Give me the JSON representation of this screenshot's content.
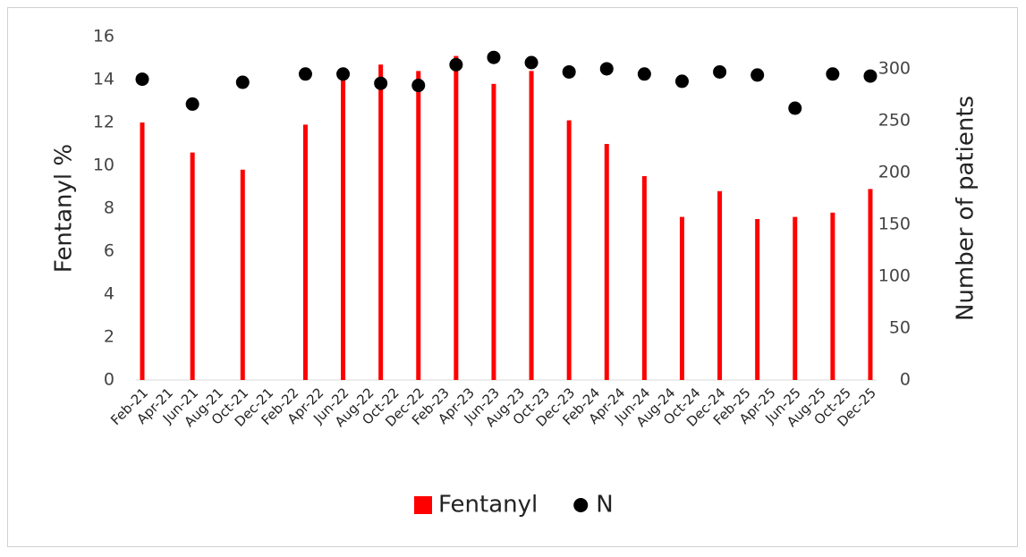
{
  "chart_data": {
    "type": "bar",
    "categories": [
      "Feb-21",
      null,
      "Apr-21",
      null,
      "Jun-21",
      null,
      "Aug-21",
      null,
      "Oct-21",
      null,
      "Dec-21",
      null,
      "Feb-22",
      null,
      "Apr-22",
      null,
      "Jun-22",
      null,
      "Aug-22",
      null,
      "Oct-22",
      null,
      "Dec-22",
      null,
      "Feb-23",
      null,
      "Apr-23",
      null,
      "Jun-23",
      null,
      "Aug-23",
      null,
      "Oct-23",
      null,
      "Dec-23",
      null,
      "Feb-24",
      null,
      "Apr-24",
      null,
      "Jun-24",
      null,
      "Aug-24",
      null,
      "Oct-24",
      null,
      "Dec-24",
      null,
      "Feb-25",
      null,
      "Apr-25",
      null,
      "Jun-25",
      null,
      "Aug-25",
      null,
      "Oct-25",
      null,
      "Dec-25"
    ],
    "series": [
      {
        "name": "Fentanyl",
        "color": "#ff0000",
        "type": "bar",
        "values": [
          12.0,
          null,
          null,
          null,
          10.6,
          null,
          null,
          null,
          9.8,
          null,
          null,
          null,
          null,
          11.9,
          null,
          null,
          14.3,
          null,
          null,
          14.7,
          null,
          null,
          14.4,
          null,
          null,
          15.1,
          null,
          null,
          13.8,
          null,
          null,
          14.4,
          null,
          null,
          12.1,
          null,
          null,
          11.0,
          null,
          null,
          9.5,
          null,
          null,
          7.6,
          null,
          null,
          8.8,
          null,
          null,
          7.5,
          null,
          null,
          7.6,
          null,
          null,
          7.8,
          null,
          null,
          8.9
        ]
      },
      {
        "name": "N",
        "color": "#000000",
        "type": "scatter",
        "axis": "y2",
        "values": [
          290,
          null,
          null,
          null,
          266,
          null,
          null,
          null,
          287,
          null,
          null,
          null,
          null,
          295,
          null,
          null,
          295,
          null,
          null,
          286,
          null,
          null,
          284,
          null,
          null,
          304,
          null,
          null,
          311,
          null,
          null,
          306,
          null,
          null,
          297,
          null,
          null,
          300,
          null,
          null,
          295,
          null,
          null,
          288,
          null,
          null,
          297,
          null,
          null,
          294,
          null,
          null,
          262,
          null,
          null,
          295,
          null,
          null,
          293
        ]
      }
    ],
    "y_label": "Fentanyl %",
    "y2_label": "Number of patients",
    "ylim": [
      0,
      16
    ],
    "yticks": [
      0,
      2,
      4,
      6,
      8,
      10,
      12,
      14,
      16
    ],
    "y2lim": [
      0,
      331
    ],
    "y2ticks": [
      0,
      50,
      100,
      150,
      200,
      250,
      300
    ],
    "grid": false,
    "legend": "bottom"
  }
}
